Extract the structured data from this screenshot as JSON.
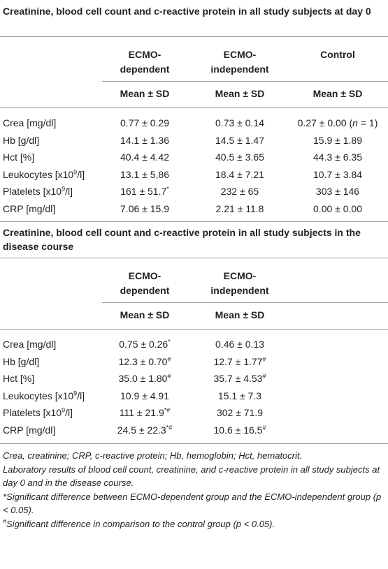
{
  "table1": {
    "title": "Creatinine, blood cell count and c-reactive protein in all study subjects at day 0",
    "columns": [
      "ECMO-dependent",
      "ECMO-independent",
      "Control"
    ],
    "subheader": [
      "Mean ± SD",
      "Mean ± SD",
      "Mean ± SD"
    ],
    "rows": [
      [
        [
          "Crea [mg/dl]"
        ],
        [
          "0.77 ± 0.29"
        ],
        [
          "0.73 ± 0.14"
        ],
        [
          "0.27 ± 0.00 (",
          {
            "i": "n"
          },
          " = 1)"
        ]
      ],
      [
        [
          "Hb [g/dl]"
        ],
        [
          "14.1 ± 1.36"
        ],
        [
          "14.5 ± 1.47"
        ],
        [
          "15.9 ± 1.89"
        ]
      ],
      [
        [
          "Hct [%]"
        ],
        [
          "40.4 ± 4.42"
        ],
        [
          "40.5 ± 3.65"
        ],
        [
          "44.3 ± 6.35"
        ]
      ],
      [
        [
          "Leukocytes [x10",
          {
            "sup": "9"
          },
          "/l]"
        ],
        [
          "13.1 ± 5,86"
        ],
        [
          "18.4 ± 7.21"
        ],
        [
          "10.7 ± 3.84"
        ]
      ],
      [
        [
          "Platelets [x10",
          {
            "sup": "9"
          },
          "/l]"
        ],
        [
          "161 ± 51.7",
          {
            "sup": "*"
          }
        ],
        [
          "232 ± 65"
        ],
        [
          "303 ± 146"
        ]
      ],
      [
        [
          "CRP [mg/dl]"
        ],
        [
          "7.06 ± 15.9"
        ],
        [
          "2.21 ± 11.8"
        ],
        [
          "0.00 ± 0.00"
        ]
      ]
    ]
  },
  "table2": {
    "title": "Creatinine, blood cell count and c-reactive protein in all study subjects in the disease course",
    "columns": [
      "ECMO-dependent",
      "ECMO-independent"
    ],
    "subheader": [
      "Mean ± SD",
      "Mean ± SD"
    ],
    "rows": [
      [
        [
          "Crea [mg/dl]"
        ],
        [
          "0.75 ± 0.26",
          {
            "sup": "*"
          }
        ],
        [
          "0.46 ± 0.13"
        ]
      ],
      [
        [
          "Hb [g/dl]"
        ],
        [
          "12.3 ± 0.70",
          {
            "sup": "#"
          }
        ],
        [
          "12.7 ± 1.77",
          {
            "sup": "#"
          }
        ]
      ],
      [
        [
          "Hct [%]"
        ],
        [
          "35.0 ± 1.80",
          {
            "sup": "#"
          }
        ],
        [
          "35.7 ± 4.53",
          {
            "sup": "#"
          }
        ]
      ],
      [
        [
          "Leukocytes [x10",
          {
            "sup": "9"
          },
          "/l]"
        ],
        [
          "10.9 ± 4.91"
        ],
        [
          "15.1 ± 7.3"
        ]
      ],
      [
        [
          "Platelets [x10",
          {
            "sup": "9"
          },
          "/l]"
        ],
        [
          "111 ± 21.9",
          {
            "sup": "*#"
          }
        ],
        [
          "302 ± 71.9"
        ]
      ],
      [
        [
          "CRP [mg/dl]"
        ],
        [
          "24.5 ± 22.3",
          {
            "sup": "*#"
          }
        ],
        [
          "10.6 ± 16.5",
          {
            "sup": "#"
          }
        ]
      ]
    ]
  },
  "footnotes": [
    [
      "Crea, creatinine; CRP, c-reactive protein; Hb, hemoglobin; Hct, hematocrit."
    ],
    [
      "Laboratory results of blood cell count, creatinine, and c-reactive protein in all study subjects at day 0 and in the disease course."
    ],
    [
      "*Significant difference between ECMO-dependent group and the ECMO-independent group (p < 0.05)."
    ],
    [
      {
        "sup": "#"
      },
      "Significant difference in comparison to the control group (p < 0.05)."
    ]
  ]
}
